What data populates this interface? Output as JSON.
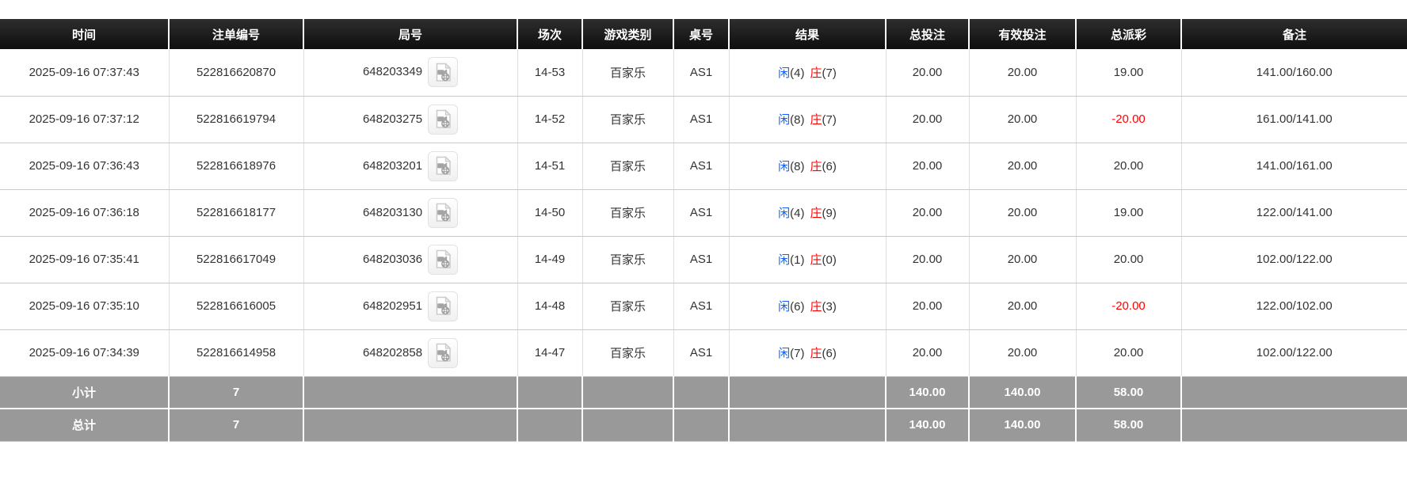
{
  "colors": {
    "header_bg": "#1c1c1c",
    "footer_bg": "#999999",
    "bet_amount_blue": "#0b5fff",
    "player_blue": "#0b5fff",
    "banker_red": "#ff0000",
    "negative_red": "#ff0000"
  },
  "table": {
    "columns": [
      {
        "key": "time",
        "label": "时间"
      },
      {
        "key": "bet_id",
        "label": "注单编号"
      },
      {
        "key": "round_id",
        "label": "局号"
      },
      {
        "key": "session",
        "label": "场次"
      },
      {
        "key": "game_type",
        "label": "游戏类别"
      },
      {
        "key": "table_no",
        "label": "桌号"
      },
      {
        "key": "result",
        "label": "结果"
      },
      {
        "key": "total_bet",
        "label": "总投注"
      },
      {
        "key": "valid_bet",
        "label": "有效投注"
      },
      {
        "key": "payout",
        "label": "总派彩"
      },
      {
        "key": "remark",
        "label": "备注"
      }
    ],
    "video_icon": "video-record-icon",
    "rows": [
      {
        "time": "2025-09-16 07:37:43",
        "bet_id": "522816620870",
        "round_id": "648203349",
        "session": "14-53",
        "game_type": "百家乐",
        "table_no": "AS1",
        "result": {
          "p": "闲",
          "p_n": "(4)",
          "b": "庄",
          "b_n": "(7)"
        },
        "total_bet": "20.00",
        "valid_bet": "20.00",
        "payout": "19.00",
        "remark": "141.00/160.00"
      },
      {
        "time": "2025-09-16 07:37:12",
        "bet_id": "522816619794",
        "round_id": "648203275",
        "session": "14-52",
        "game_type": "百家乐",
        "table_no": "AS1",
        "result": {
          "p": "闲",
          "p_n": "(8)",
          "b": "庄",
          "b_n": "(7)"
        },
        "total_bet": "20.00",
        "valid_bet": "20.00",
        "payout": "-20.00",
        "remark": "161.00/141.00"
      },
      {
        "time": "2025-09-16 07:36:43",
        "bet_id": "522816618976",
        "round_id": "648203201",
        "session": "14-51",
        "game_type": "百家乐",
        "table_no": "AS1",
        "result": {
          "p": "闲",
          "p_n": "(8)",
          "b": "庄",
          "b_n": "(6)"
        },
        "total_bet": "20.00",
        "valid_bet": "20.00",
        "payout": "20.00",
        "remark": "141.00/161.00"
      },
      {
        "time": "2025-09-16 07:36:18",
        "bet_id": "522816618177",
        "round_id": "648203130",
        "session": "14-50",
        "game_type": "百家乐",
        "table_no": "AS1",
        "result": {
          "p": "闲",
          "p_n": "(4)",
          "b": "庄",
          "b_n": "(9)"
        },
        "total_bet": "20.00",
        "valid_bet": "20.00",
        "payout": "19.00",
        "remark": "122.00/141.00"
      },
      {
        "time": "2025-09-16 07:35:41",
        "bet_id": "522816617049",
        "round_id": "648203036",
        "session": "14-49",
        "game_type": "百家乐",
        "table_no": "AS1",
        "result": {
          "p": "闲",
          "p_n": "(1)",
          "b": "庄",
          "b_n": "(0)"
        },
        "total_bet": "20.00",
        "valid_bet": "20.00",
        "payout": "20.00",
        "remark": "102.00/122.00"
      },
      {
        "time": "2025-09-16 07:35:10",
        "bet_id": "522816616005",
        "round_id": "648202951",
        "session": "14-48",
        "game_type": "百家乐",
        "table_no": "AS1",
        "result": {
          "p": "闲",
          "p_n": "(6)",
          "b": "庄",
          "b_n": "(3)"
        },
        "total_bet": "20.00",
        "valid_bet": "20.00",
        "payout": "-20.00",
        "remark": "122.00/102.00"
      },
      {
        "time": "2025-09-16 07:34:39",
        "bet_id": "522816614958",
        "round_id": "648202858",
        "session": "14-47",
        "game_type": "百家乐",
        "table_no": "AS1",
        "result": {
          "p": "闲",
          "p_n": "(7)",
          "b": "庄",
          "b_n": "(6)"
        },
        "total_bet": "20.00",
        "valid_bet": "20.00",
        "payout": "20.00",
        "remark": "102.00/122.00"
      }
    ],
    "subtotal": {
      "label": "小计",
      "count": "7",
      "total_bet": "140.00",
      "valid_bet": "140.00",
      "payout": "58.00"
    },
    "total": {
      "label": "总计",
      "count": "7",
      "total_bet": "140.00",
      "valid_bet": "140.00",
      "payout": "58.00"
    }
  }
}
